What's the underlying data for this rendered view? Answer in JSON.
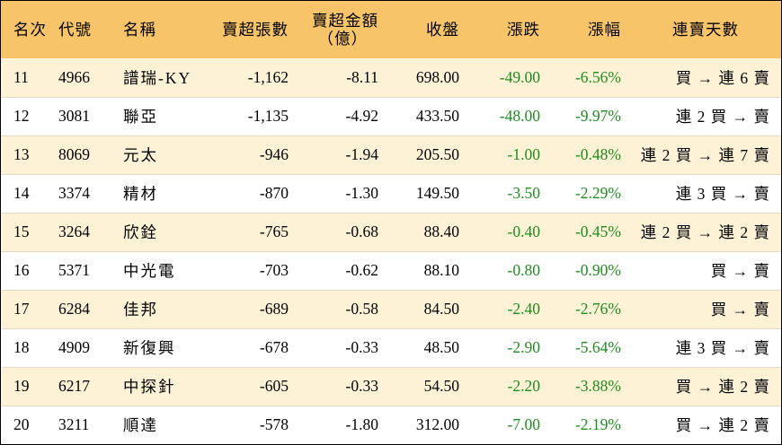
{
  "headers": {
    "rank": "名次",
    "code": "代號",
    "name": "名稱",
    "net_sell_lots": "賣超張數",
    "net_sell_amount": "賣超金額",
    "net_sell_amount_unit": "（億）",
    "close": "收盤",
    "change": "漲跌",
    "change_pct": "漲幅",
    "streak": "連賣天數"
  },
  "colors": {
    "header_bg": "#f7c46a",
    "row_alt_bg": "#fdf2d6",
    "negative_change": "#1e8c1e"
  },
  "rows": [
    {
      "rank": "11",
      "code": "4966",
      "name": "譜瑞-KY",
      "lots": "-1,162",
      "amount": "-8.11",
      "close": "698.00",
      "change": "-49.00",
      "pct": "-6.56%",
      "streak": "買 → 連 6 賣"
    },
    {
      "rank": "12",
      "code": "3081",
      "name": "聯亞",
      "lots": "-1,135",
      "amount": "-4.92",
      "close": "433.50",
      "change": "-48.00",
      "pct": "-9.97%",
      "streak": "連 2 買 → 賣"
    },
    {
      "rank": "13",
      "code": "8069",
      "name": "元太",
      "lots": "-946",
      "amount": "-1.94",
      "close": "205.50",
      "change": "-1.00",
      "pct": "-0.48%",
      "streak": "連 2 買 → 連 7 賣"
    },
    {
      "rank": "14",
      "code": "3374",
      "name": "精材",
      "lots": "-870",
      "amount": "-1.30",
      "close": "149.50",
      "change": "-3.50",
      "pct": "-2.29%",
      "streak": "連 3 買 → 賣"
    },
    {
      "rank": "15",
      "code": "3264",
      "name": "欣銓",
      "lots": "-765",
      "amount": "-0.68",
      "close": "88.40",
      "change": "-0.40",
      "pct": "-0.45%",
      "streak": "連 2 買 → 連 2 賣"
    },
    {
      "rank": "16",
      "code": "5371",
      "name": "中光電",
      "lots": "-703",
      "amount": "-0.62",
      "close": "88.10",
      "change": "-0.80",
      "pct": "-0.90%",
      "streak": "買 → 賣"
    },
    {
      "rank": "17",
      "code": "6284",
      "name": "佳邦",
      "lots": "-689",
      "amount": "-0.58",
      "close": "84.50",
      "change": "-2.40",
      "pct": "-2.76%",
      "streak": "買 → 賣"
    },
    {
      "rank": "18",
      "code": "4909",
      "name": "新復興",
      "lots": "-678",
      "amount": "-0.33",
      "close": "48.50",
      "change": "-2.90",
      "pct": "-5.64%",
      "streak": "連 3 買 → 賣"
    },
    {
      "rank": "19",
      "code": "6217",
      "name": "中探針",
      "lots": "-605",
      "amount": "-0.33",
      "close": "54.50",
      "change": "-2.20",
      "pct": "-3.88%",
      "streak": "買 → 連 2 賣"
    },
    {
      "rank": "20",
      "code": "3211",
      "name": "順達",
      "lots": "-578",
      "amount": "-1.80",
      "close": "312.00",
      "change": "-7.00",
      "pct": "-2.19%",
      "streak": "買 → 連 2 賣"
    }
  ]
}
